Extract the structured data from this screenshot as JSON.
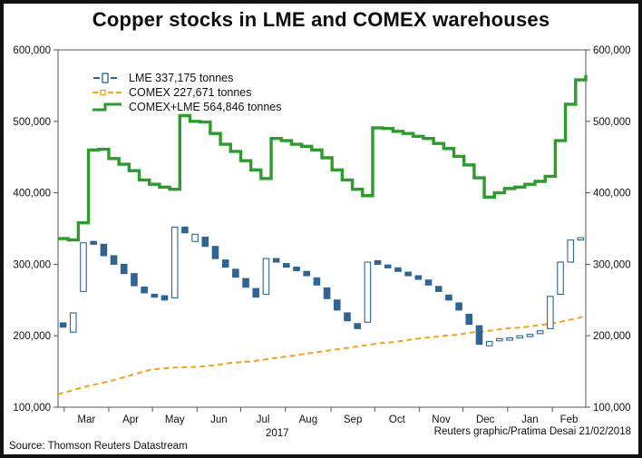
{
  "page": {
    "title": "Copper stocks in LME and COMEX warehouses",
    "source": "Source: Thomson Reuters Datastream",
    "credit": "Reuters graphic/Pratima Desai 21/02/2018"
  },
  "legend": [
    {
      "label": "LME 337,175 tonnes"
    },
    {
      "label": "COMEX 227,671 tonnes"
    },
    {
      "label": "COMEX+LME 564,846 tonnes"
    }
  ],
  "colors": {
    "lme": "#2f6494",
    "comex": "#f7a11a",
    "total": "#2e9b2e",
    "text": "#111111",
    "axis": "#555555"
  },
  "chart_data": {
    "type": "combo",
    "title": "Copper stocks in LME and COMEX warehouses",
    "unit": "tonnes",
    "ylim": [
      100000,
      600000
    ],
    "yticks": [
      100000,
      200000,
      300000,
      400000,
      500000,
      600000
    ],
    "month_labels": [
      "Mar",
      "Apr",
      "May",
      "Jun",
      "Jul",
      "Aug",
      "Sep",
      "Oct",
      "Nov",
      "Dec",
      "Jan",
      "Feb"
    ],
    "x_year": "2017",
    "weeks_total": 52,
    "grid": false,
    "legend_position": "top-left-inside",
    "series": [
      {
        "name": "LME",
        "type": "ohlc_bar",
        "last_value": 337175,
        "color_key": "lme",
        "bars": [
          [
            218000,
            212000
          ],
          [
            205000,
            232000
          ],
          [
            262000,
            330000
          ],
          [
            332000,
            328000
          ],
          [
            328000,
            312000
          ],
          [
            312000,
            300000
          ],
          [
            300000,
            287000
          ],
          [
            287000,
            270000
          ],
          [
            268000,
            260000
          ],
          [
            258000,
            254000
          ],
          [
            256000,
            250000
          ],
          [
            253000,
            352000
          ],
          [
            352000,
            344000
          ],
          [
            332000,
            342000
          ],
          [
            338000,
            325000
          ],
          [
            325000,
            308000
          ],
          [
            306000,
            296000
          ],
          [
            293000,
            282000
          ],
          [
            280000,
            268000
          ],
          [
            266000,
            254000
          ],
          [
            258000,
            308000
          ],
          [
            308000,
            303000
          ],
          [
            301000,
            296000
          ],
          [
            296000,
            291000
          ],
          [
            290000,
            284000
          ],
          [
            281000,
            271000
          ],
          [
            267000,
            252000
          ],
          [
            250000,
            236000
          ],
          [
            232000,
            221000
          ],
          [
            217000,
            210000
          ],
          [
            219000,
            303000
          ],
          [
            305000,
            300000
          ],
          [
            299000,
            295000
          ],
          [
            295000,
            290000
          ],
          [
            289000,
            284000
          ],
          [
            284000,
            279000
          ],
          [
            278000,
            271000
          ],
          [
            269000,
            262000
          ],
          [
            257000,
            250000
          ],
          [
            246000,
            236000
          ],
          [
            230000,
            216000
          ],
          [
            214000,
            188000
          ],
          [
            186000,
            192000
          ],
          [
            193000,
            196000
          ],
          [
            194000,
            197000
          ],
          [
            197000,
            200000
          ],
          [
            199000,
            202000
          ],
          [
            203000,
            207000
          ],
          [
            210000,
            255000
          ],
          [
            258000,
            303000
          ],
          [
            303000,
            334000
          ],
          [
            335000,
            337175
          ]
        ]
      },
      {
        "name": "COMEX",
        "type": "dashed_line",
        "last_value": 227671,
        "color_key": "comex",
        "values": [
          118000,
          122000,
          126000,
          130000,
          133000,
          136000,
          140000,
          144000,
          148000,
          152000,
          154000,
          155000,
          156000,
          156000,
          157000,
          158000,
          160000,
          162000,
          163000,
          164000,
          166000,
          168000,
          170000,
          172000,
          174000,
          176000,
          178000,
          180000,
          182000,
          184000,
          186000,
          188000,
          190000,
          191000,
          193000,
          195000,
          197000,
          198000,
          200000,
          201000,
          203000,
          205000,
          206000,
          208000,
          210000,
          211000,
          212000,
          214000,
          216000,
          218000,
          221000,
          224000,
          227671
        ]
      },
      {
        "name": "COMEX+LME",
        "type": "step_line",
        "last_value": 564846,
        "color_key": "total",
        "values": [
          336000,
          334000,
          358000,
          460000,
          461000,
          448000,
          440000,
          431000,
          418000,
          412000,
          408000,
          405000,
          508000,
          500000,
          499000,
          483000,
          468000,
          458000,
          445000,
          432000,
          420000,
          476000,
          473000,
          468000,
          465000,
          460000,
          449000,
          432000,
          418000,
          405000,
          396000,
          491000,
          490000,
          486000,
          483000,
          479000,
          476000,
          469000,
          462000,
          451000,
          439000,
          421000,
          394000,
          400000,
          406000,
          408000,
          412000,
          416000,
          423000,
          473000,
          524000,
          558000,
          564846
        ]
      }
    ]
  }
}
